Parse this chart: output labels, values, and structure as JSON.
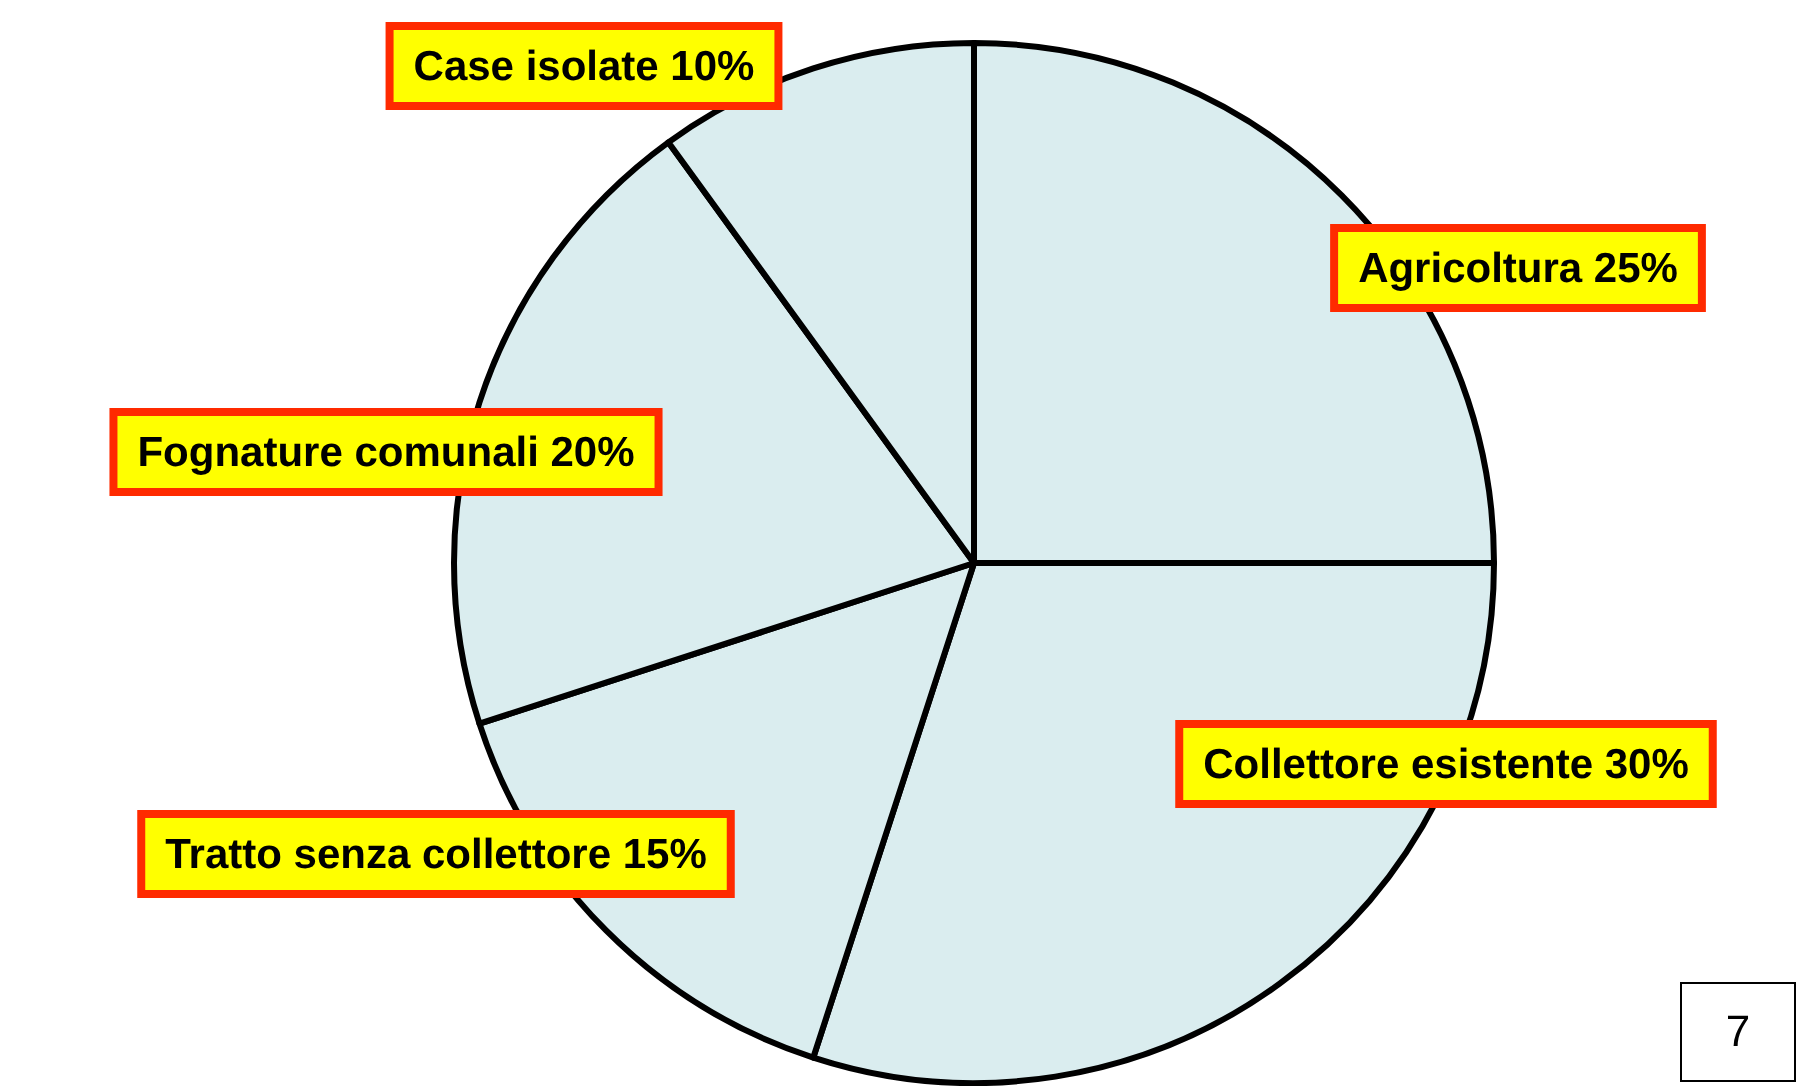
{
  "chart_data": {
    "type": "pie",
    "categories": [
      "Agricoltura",
      "Collettore esistente",
      "Tratto senza collettore",
      "Fognature comunali",
      "Case isolate"
    ],
    "values": [
      25,
      30,
      15,
      20,
      10
    ],
    "value_labels": [
      "25%",
      "30%",
      "15%",
      "20%",
      "10%"
    ],
    "colors": [
      "#daedef",
      "#daedef",
      "#daedef",
      "#daedef",
      "#daedef"
    ],
    "legend": false,
    "annotations": [
      "7"
    ]
  }
}
